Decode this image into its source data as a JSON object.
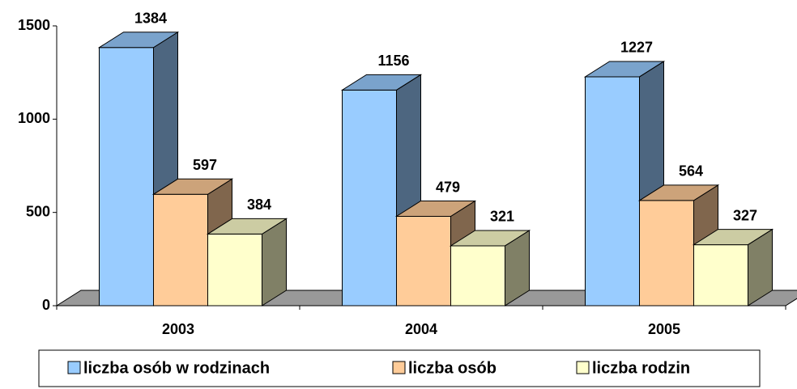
{
  "chart_data": {
    "type": "bar3d",
    "categories": [
      "2003",
      "2004",
      "2005"
    ],
    "series": [
      {
        "name": "liczba osób w rodzinach",
        "color": "#99ccff",
        "values": [
          1384,
          1156,
          1227
        ]
      },
      {
        "name": "liczba osób",
        "color": "#ffcc99",
        "values": [
          597,
          479,
          564
        ]
      },
      {
        "name": "liczba rodzin",
        "color": "#ffffcc",
        "values": [
          384,
          321,
          327
        ]
      }
    ],
    "ylim": [
      0,
      1500
    ],
    "yticks": [
      0,
      500,
      1000,
      1500
    ],
    "legend": "bottom"
  }
}
